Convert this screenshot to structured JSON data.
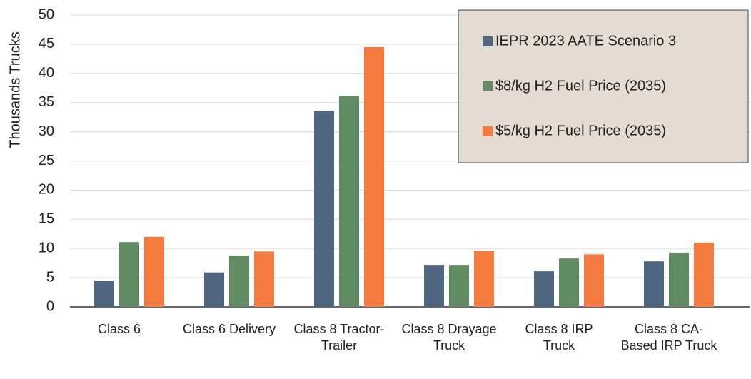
{
  "chart_data": {
    "type": "bar",
    "y_label": "Thousands Trucks",
    "categories": [
      "Class 6",
      "Class 6 Delivery",
      "Class 8 Tractor-Trailer",
      "Class 8 Drayage Truck",
      "Class 8 IRP Truck",
      "Class 8 CA-Based IRP Truck"
    ],
    "series": [
      {
        "name": "IEPR 2023 AATE Scenario 3",
        "color": "#4f6680",
        "values": [
          4.5,
          5.9,
          33.6,
          7.2,
          6.1,
          7.8
        ]
      },
      {
        "name": "$8/kg H2 Fuel Price (2035)",
        "color": "#608b63",
        "values": [
          11.1,
          8.8,
          36.1,
          7.2,
          8.3,
          9.3
        ]
      },
      {
        "name": "$5/kg H2 Fuel Price (2035)",
        "color": "#f47b40",
        "values": [
          12.0,
          9.5,
          44.5,
          9.6,
          9.0,
          11.0
        ]
      }
    ],
    "ylim": [
      0,
      50
    ],
    "yticks": [
      0,
      5,
      10,
      15,
      20,
      25,
      30,
      35,
      40,
      45,
      50
    ],
    "grid": true,
    "legend": "top-right"
  }
}
